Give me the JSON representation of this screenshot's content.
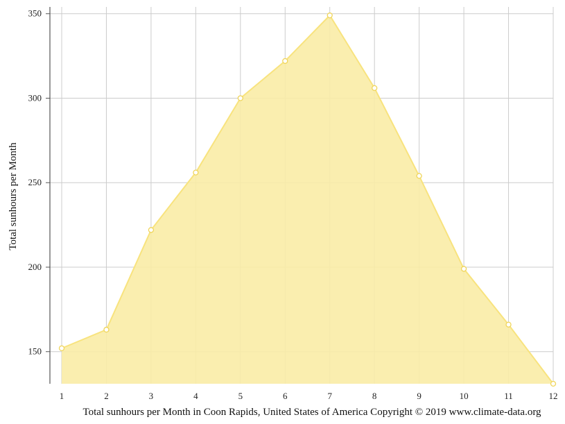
{
  "chart_data": {
    "type": "area",
    "x": [
      1,
      2,
      3,
      4,
      5,
      6,
      7,
      8,
      9,
      10,
      11,
      12
    ],
    "values": [
      152,
      163,
      222,
      256,
      300,
      322,
      349,
      306,
      254,
      199,
      166,
      131
    ],
    "title": "",
    "ylabel": "Total sunhours per Month",
    "xlabel": "",
    "caption": "Total sunhours per Month in Coon Rapids, United States of America Copyright © 2019 www.climate-data.org",
    "ylim": [
      131,
      354
    ],
    "yticks": [
      150,
      200,
      250,
      300,
      350
    ],
    "xticks": [
      1,
      2,
      3,
      4,
      5,
      6,
      7,
      8,
      9,
      10,
      11,
      12
    ],
    "grid": true,
    "colors": {
      "fill": "#f9eca6",
      "line": "#f8e37e",
      "point_fill": "#ffffff",
      "point_stroke": "#f0d55a",
      "grid": "#cccccc",
      "axis": "#555555"
    }
  }
}
